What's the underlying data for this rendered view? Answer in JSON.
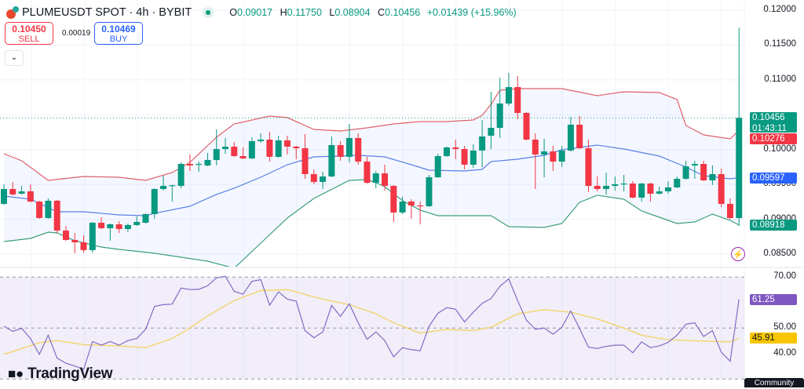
{
  "header": {
    "symbol": "PLUMEUSDT SPOT · 4h · BYBIT",
    "ohlc": {
      "o_label": "O",
      "o": "0.09017",
      "h_label": "H",
      "h": "0.11750",
      "l_label": "L",
      "l": "0.08904",
      "c_label": "C",
      "c": "0.10456",
      "change": "+0.01439 (+15.96%)"
    },
    "market_status": "open"
  },
  "trade": {
    "sell_price": "0.10450",
    "sell_label": "SELL",
    "spread": "0.00019",
    "buy_price": "0.10469",
    "buy_label": "BUY"
  },
  "price_axis": {
    "ticks": [
      "0.12000",
      "0.11500",
      "0.11000",
      "0.10000",
      "0.09500",
      "0.09000",
      "0.08500"
    ],
    "tick_values": [
      0.12,
      0.115,
      0.11,
      0.1,
      0.095,
      0.09,
      0.085
    ]
  },
  "price_tags": {
    "last": {
      "value": "0.10456",
      "countdown": "01:43:11",
      "color": "#089981"
    },
    "bb_upper": {
      "value": "0.10276",
      "color": "#f23645"
    },
    "bb_basis": {
      "value": "0.09597",
      "color": "#2962ff"
    },
    "bb_lower": {
      "value": "0.08918",
      "color": "#089981"
    }
  },
  "rsi_axis": {
    "ticks": [
      "70.00",
      "50.00",
      "40.00"
    ],
    "tick_values": [
      70,
      50,
      40
    ]
  },
  "rsi_tags": {
    "rsi": {
      "value": "61.25",
      "color": "#7e57c2"
    },
    "rsi_ma": {
      "value": "45.91",
      "color": "#f7c600"
    }
  },
  "branding": {
    "logo_text": "TradingView",
    "community": "Community"
  },
  "icons": {
    "logo": "plume-logo",
    "bolt": "lightning-icon",
    "chevron": "chevron-down-icon"
  },
  "colors": {
    "up": "#089981",
    "down": "#f23645",
    "bb_upper": "#e0606a",
    "bb_basis": "#5a7fe6",
    "bb_lower": "#3c9f7c",
    "rsi": "#7e6bc4",
    "rsi_ma": "#f2d36b"
  },
  "chart_data": [
    {
      "type": "candlestick",
      "ylim": [
        0.0835,
        0.1205
      ],
      "grid": true,
      "candles_ohlc": [
        [
          0.09221,
          0.09502,
          0.09209,
          0.09434
        ],
        [
          0.09434,
          0.09536,
          0.09344,
          0.09356
        ],
        [
          0.09367,
          0.09479,
          0.09356,
          0.09401
        ],
        [
          0.09401,
          0.09502,
          0.09243,
          0.09254
        ],
        [
          0.09254,
          0.09266,
          0.09007,
          0.09018
        ],
        [
          0.09018,
          0.09299,
          0.09007,
          0.09266
        ],
        [
          0.09266,
          0.09277,
          0.08804,
          0.08838
        ],
        [
          0.08838,
          0.08905,
          0.08692,
          0.08703
        ],
        [
          0.08703,
          0.08804,
          0.08512,
          0.08669
        ],
        [
          0.08669,
          0.0877,
          0.08523,
          0.08557
        ],
        [
          0.08557,
          0.08962,
          0.08523,
          0.0895
        ],
        [
          0.0895,
          0.09029,
          0.0886,
          0.08872
        ],
        [
          0.08872,
          0.08939,
          0.08692,
          0.08928
        ],
        [
          0.08928,
          0.08973,
          0.08804,
          0.0886
        ],
        [
          0.0886,
          0.08939,
          0.08815,
          0.08917
        ],
        [
          0.08917,
          0.09041,
          0.08905,
          0.08962
        ],
        [
          0.0895,
          0.09086,
          0.08939,
          0.09074
        ],
        [
          0.09074,
          0.09446,
          0.09007,
          0.09434
        ],
        [
          0.09434,
          0.09626,
          0.09412,
          0.09479
        ],
        [
          0.09479,
          0.09495,
          0.09254,
          0.09488
        ],
        [
          0.09479,
          0.09817,
          0.09446,
          0.09794
        ],
        [
          0.09794,
          0.09929,
          0.09693,
          0.09772
        ],
        [
          0.09783,
          0.09828,
          0.09682,
          0.09794
        ],
        [
          0.09772,
          0.09952,
          0.09761,
          0.09851
        ],
        [
          0.09851,
          0.10289,
          0.09772,
          0.10008
        ],
        [
          0.10008,
          0.10166,
          0.09941,
          0.10042
        ],
        [
          0.10042,
          0.10109,
          0.09896,
          0.09907
        ],
        [
          0.09907,
          0.10031,
          0.09862,
          0.09873
        ],
        [
          0.09873,
          0.10177,
          0.09862,
          0.10121
        ],
        [
          0.10121,
          0.10233,
          0.10098,
          0.10143
        ],
        [
          0.10143,
          0.10256,
          0.09828,
          0.09896
        ],
        [
          0.09896,
          0.10199,
          0.09884,
          0.10132
        ],
        [
          0.10132,
          0.10199,
          0.09929,
          0.10042
        ],
        [
          0.10042,
          0.10053,
          0.09862,
          0.10019
        ],
        [
          0.10019,
          0.10222,
          0.09581,
          0.09648
        ],
        [
          0.09648,
          0.09716,
          0.09502,
          0.09536
        ],
        [
          0.09536,
          0.09682,
          0.09434,
          0.09614
        ],
        [
          0.09614,
          0.10188,
          0.09603,
          0.10064
        ],
        [
          0.10064,
          0.10121,
          0.09839,
          0.09896
        ],
        [
          0.09896,
          0.10368,
          0.09817,
          0.10166
        ],
        [
          0.10166,
          0.10233,
          0.09783,
          0.09828
        ],
        [
          0.09828,
          0.09896,
          0.09513,
          0.09524
        ],
        [
          0.09524,
          0.09693,
          0.09446,
          0.09659
        ],
        [
          0.09659,
          0.09783,
          0.09412,
          0.09479
        ],
        [
          0.09479,
          0.09491,
          0.08962,
          0.09097
        ],
        [
          0.09097,
          0.09322,
          0.09074,
          0.09254
        ],
        [
          0.09254,
          0.09288,
          0.09007,
          0.09198
        ],
        [
          0.09198,
          0.09254,
          0.08928,
          0.09187
        ],
        [
          0.09187,
          0.09637,
          0.09176,
          0.09603
        ],
        [
          0.09603,
          0.09941,
          0.09592,
          0.09907
        ],
        [
          0.09907,
          0.10042,
          0.09896,
          0.10031
        ],
        [
          0.10031,
          0.10143,
          0.09862,
          0.10008
        ],
        [
          0.10008,
          0.10053,
          0.09716,
          0.09783
        ],
        [
          0.09783,
          0.10076,
          0.09738,
          0.09986
        ],
        [
          0.09986,
          0.10425,
          0.09749,
          0.10188
        ],
        [
          0.10199,
          0.1083,
          0.10008,
          0.10312
        ],
        [
          0.10312,
          0.11032,
          0.10166,
          0.10661
        ],
        [
          0.10661,
          0.111,
          0.10627,
          0.10897
        ],
        [
          0.10897,
          0.11055,
          0.10436,
          0.10526
        ],
        [
          0.10526,
          0.10537,
          0.10132,
          0.10143
        ],
        [
          0.10143,
          0.10233,
          0.09434,
          0.09929
        ],
        [
          0.09929,
          0.10154,
          0.09603,
          0.09974
        ],
        [
          0.09974,
          0.10053,
          0.09693,
          0.09828
        ],
        [
          0.09828,
          0.10053,
          0.09749,
          0.09986
        ],
        [
          0.09986,
          0.1047,
          0.09974,
          0.10357
        ],
        [
          0.10357,
          0.10481,
          0.10008,
          0.10019
        ],
        [
          0.10019,
          0.10143,
          0.09389,
          0.09479
        ],
        [
          0.09479,
          0.09614,
          0.09401,
          0.09434
        ],
        [
          0.09434,
          0.09671,
          0.09356,
          0.09479
        ],
        [
          0.09479,
          0.09614,
          0.09412,
          0.09502
        ],
        [
          0.09502,
          0.09637,
          0.09401,
          0.09513
        ],
        [
          0.09513,
          0.09547,
          0.09299,
          0.09311
        ],
        [
          0.09311,
          0.09524,
          0.09254,
          0.09513
        ],
        [
          0.09513,
          0.09524,
          0.09254,
          0.09367
        ],
        [
          0.09367,
          0.09468,
          0.09356,
          0.09401
        ],
        [
          0.09401,
          0.09547,
          0.09367,
          0.09457
        ],
        [
          0.09457,
          0.09614,
          0.09446,
          0.09581
        ],
        [
          0.09581,
          0.09839,
          0.09569,
          0.09761
        ],
        [
          0.09772,
          0.09839,
          0.09581,
          0.09794
        ],
        [
          0.09794,
          0.09839,
          0.09547,
          0.09558
        ],
        [
          0.09558,
          0.09772,
          0.09491,
          0.09648
        ],
        [
          0.09648,
          0.09727,
          0.09176,
          0.09221
        ],
        [
          0.09221,
          0.09299,
          0.08996,
          0.09018
        ],
        [
          0.09017,
          0.1175,
          0.08904,
          0.10456
        ]
      ],
      "bollinger": {
        "upper": [
          [
            0,
            0.09941
          ],
          [
            2,
            0.09839
          ],
          [
            5,
            0.09558
          ],
          [
            9,
            0.09614
          ],
          [
            13,
            0.09603
          ],
          [
            16,
            0.09558
          ],
          [
            19,
            0.09671
          ],
          [
            21,
            0.09817
          ],
          [
            24,
            0.10177
          ],
          [
            26,
            0.10368
          ],
          [
            30,
            0.10481
          ],
          [
            32,
            0.10459
          ],
          [
            35,
            0.10289
          ],
          [
            38,
            0.10267
          ],
          [
            41,
            0.10312
          ],
          [
            44,
            0.10368
          ],
          [
            47,
            0.10402
          ],
          [
            50,
            0.10402
          ],
          [
            53,
            0.10425
          ],
          [
            54,
            0.10492
          ],
          [
            55,
            0.1065
          ],
          [
            56,
            0.10852
          ],
          [
            58,
            0.10875
          ],
          [
            63,
            0.10875
          ],
          [
            67,
            0.10773
          ],
          [
            70,
            0.1083
          ],
          [
            74,
            0.10818
          ],
          [
            76,
            0.10717
          ],
          [
            77,
            0.10346
          ],
          [
            79,
            0.10211
          ],
          [
            82,
            0.10154
          ],
          [
            83,
            0.10276
          ]
        ],
        "basis": [
          [
            0,
            0.09333
          ],
          [
            3,
            0.09288
          ],
          [
            6,
            0.09108
          ],
          [
            9,
            0.09108
          ],
          [
            13,
            0.09063
          ],
          [
            16,
            0.09052
          ],
          [
            17,
            0.09086
          ],
          [
            21,
            0.09187
          ],
          [
            24,
            0.09356
          ],
          [
            26,
            0.09446
          ],
          [
            29,
            0.09603
          ],
          [
            32,
            0.09783
          ],
          [
            35,
            0.09896
          ],
          [
            38,
            0.09907
          ],
          [
            40,
            0.09918
          ],
          [
            43,
            0.09896
          ],
          [
            46,
            0.09783
          ],
          [
            48,
            0.09704
          ],
          [
            52,
            0.09693
          ],
          [
            54,
            0.09716
          ],
          [
            55,
            0.09828
          ],
          [
            58,
            0.09862
          ],
          [
            61,
            0.09918
          ],
          [
            63,
            0.09997
          ],
          [
            67,
            0.10064
          ],
          [
            70,
            0.10008
          ],
          [
            74,
            0.09907
          ],
          [
            77,
            0.09749
          ],
          [
            79,
            0.09626
          ],
          [
            82,
            0.09581
          ],
          [
            83,
            0.09597
          ]
        ],
        "lower": [
          [
            0,
            0.0868
          ],
          [
            3,
            0.08725
          ],
          [
            5,
            0.08815
          ],
          [
            6,
            0.08804
          ],
          [
            8,
            0.08692
          ],
          [
            11,
            0.08601
          ],
          [
            13,
            0.08568
          ],
          [
            17,
            0.08512
          ],
          [
            23,
            0.08399
          ],
          [
            26,
            0.08298
          ],
          [
            29,
            0.08658
          ],
          [
            32,
            0.09018
          ],
          [
            35,
            0.09299
          ],
          [
            39,
            0.09558
          ],
          [
            41,
            0.09569
          ],
          [
            42,
            0.09524
          ],
          [
            43,
            0.09468
          ],
          [
            45,
            0.09266
          ],
          [
            47,
            0.09131
          ],
          [
            49,
            0.09052
          ],
          [
            53,
            0.09052
          ],
          [
            55,
            0.09052
          ],
          [
            57,
            0.08894
          ],
          [
            61,
            0.08883
          ],
          [
            63,
            0.08939
          ],
          [
            65,
            0.09243
          ],
          [
            67,
            0.09344
          ],
          [
            70,
            0.09288
          ],
          [
            72,
            0.09119
          ],
          [
            74,
            0.09029
          ],
          [
            76,
            0.08939
          ],
          [
            78,
            0.08962
          ],
          [
            80,
            0.09074
          ],
          [
            82,
            0.08984
          ],
          [
            83,
            0.08918
          ]
        ]
      },
      "last_price": 0.10456
    },
    {
      "type": "line",
      "ylim": [
        30,
        70
      ],
      "bands": [
        70,
        50,
        30
      ],
      "rsi": [
        50.7,
        48.7,
        49.9,
        45.9,
        39.7,
        47.2,
        38.2,
        36.2,
        35.1,
        33.8,
        44.7,
        43.3,
        44.7,
        43.3,
        45.1,
        45.9,
        49.5,
        58.5,
        59.2,
        59.4,
        65.7,
        65.1,
        65.2,
        66.6,
        69.7,
        70.3,
        64.4,
        63.3,
        68.3,
        69.0,
        59.0,
        64.2,
        61.3,
        60.6,
        49.0,
        46.2,
        48.5,
        58.9,
        54.6,
        59.5,
        52.1,
        45.6,
        48.5,
        45.1,
        38.7,
        42.3,
        41.5,
        41.1,
        50.7,
        55.8,
        58.0,
        57.4,
        52.4,
        56.2,
        59.7,
        61.6,
        66.4,
        69.3,
        60.8,
        53.1,
        49.5,
        50.0,
        47.6,
        50.3,
        56.7,
        49.8,
        42.5,
        42.0,
        42.8,
        43.3,
        43.3,
        40.3,
        44.6,
        42.3,
        43.0,
        44.4,
        47.2,
        51.5,
        52.1,
        46.7,
        49.0,
        40.5,
        37.0,
        61.25
      ],
      "rsi_ma": [
        [
          0,
          39.7
        ],
        [
          4,
          44.2
        ],
        [
          6,
          45.1
        ],
        [
          9,
          43.5
        ],
        [
          13,
          43.0
        ],
        [
          16,
          42.3
        ],
        [
          19,
          45.9
        ],
        [
          21,
          50.0
        ],
        [
          23,
          54.8
        ],
        [
          26,
          60.8
        ],
        [
          29,
          64.7
        ],
        [
          32,
          65.1
        ],
        [
          36,
          61.3
        ],
        [
          39,
          59.2
        ],
        [
          42,
          55.6
        ],
        [
          44,
          52.1
        ],
        [
          47,
          48.0
        ],
        [
          50,
          49.5
        ],
        [
          53,
          49.0
        ],
        [
          55,
          50.3
        ],
        [
          58,
          55.6
        ],
        [
          61,
          57.2
        ],
        [
          64,
          56.2
        ],
        [
          67,
          53.6
        ],
        [
          70,
          50.0
        ],
        [
          72,
          47.2
        ],
        [
          75,
          45.4
        ],
        [
          79,
          44.9
        ],
        [
          82,
          44.6
        ],
        [
          83,
          45.91
        ]
      ]
    }
  ]
}
